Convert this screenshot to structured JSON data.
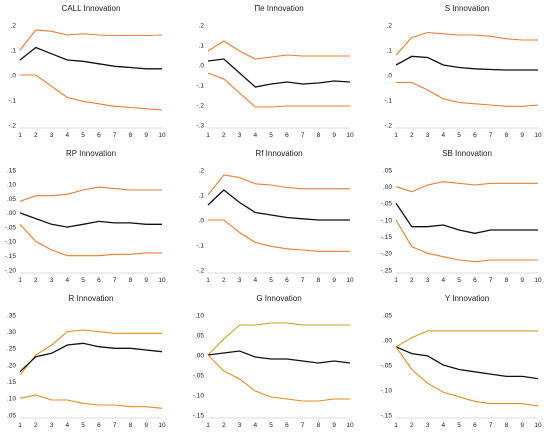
{
  "chart_data": [
    {
      "type": "line",
      "title": "CALL Innovation",
      "x": [
        1,
        2,
        3,
        4,
        5,
        6,
        7,
        8,
        9,
        10
      ],
      "yticks": [
        ".2",
        ".1",
        ".0",
        "-.1",
        "-.2"
      ],
      "ylim": [
        -0.2,
        0.2
      ],
      "series": [
        {
          "values": [
            0.1,
            0.18,
            0.175,
            0.16,
            0.165,
            0.16,
            0.158,
            0.158,
            0.158,
            0.16
          ],
          "color": "#ee7b30"
        },
        {
          "values": [
            0.06,
            0.11,
            0.085,
            0.06,
            0.055,
            0.045,
            0.035,
            0.03,
            0.025,
            0.025
          ],
          "color": "#111111"
        },
        {
          "values": [
            0.0,
            0.0,
            -0.045,
            -0.09,
            -0.105,
            -0.115,
            -0.125,
            -0.13,
            -0.135,
            -0.14
          ],
          "color": "#ee7b30"
        }
      ]
    },
    {
      "type": "line",
      "title": "Пe Innovation",
      "x": [
        1,
        2,
        3,
        4,
        5,
        6,
        7,
        8,
        9,
        10
      ],
      "yticks": [
        ".2",
        ".1",
        ".0",
        "-.1",
        "-.2",
        "-.3"
      ],
      "ylim": [
        -0.3,
        0.2
      ],
      "series": [
        {
          "values": [
            0.07,
            0.12,
            0.07,
            0.03,
            0.04,
            0.05,
            0.045,
            0.045,
            0.045,
            0.045
          ],
          "color": "#ee7b30"
        },
        {
          "values": [
            0.02,
            0.03,
            -0.04,
            -0.11,
            -0.095,
            -0.085,
            -0.095,
            -0.09,
            -0.08,
            -0.085
          ],
          "color": "#111111"
        },
        {
          "values": [
            -0.04,
            -0.07,
            -0.14,
            -0.21,
            -0.21,
            -0.205,
            -0.205,
            -0.205,
            -0.205,
            -0.205
          ],
          "color": "#ee7b30"
        }
      ]
    },
    {
      "type": "line",
      "title": "S Innovation",
      "x": [
        1,
        2,
        3,
        4,
        5,
        6,
        7,
        8,
        9,
        10
      ],
      "yticks": [
        ".2",
        ".1",
        ".0",
        "-.1",
        "-.2"
      ],
      "ylim": [
        -0.2,
        0.2
      ],
      "series": [
        {
          "values": [
            0.08,
            0.15,
            0.17,
            0.165,
            0.16,
            0.16,
            0.155,
            0.145,
            0.14,
            0.14
          ],
          "color": "#ee7b30"
        },
        {
          "values": [
            0.04,
            0.075,
            0.07,
            0.04,
            0.03,
            0.025,
            0.022,
            0.02,
            0.02,
            0.02
          ],
          "color": "#111111"
        },
        {
          "values": [
            -0.03,
            -0.03,
            -0.06,
            -0.095,
            -0.11,
            -0.115,
            -0.12,
            -0.125,
            -0.125,
            -0.12
          ],
          "color": "#ee7b30"
        }
      ]
    },
    {
      "type": "line",
      "title": "RP Innovation",
      "x": [
        1,
        2,
        3,
        4,
        5,
        6,
        7,
        8,
        9,
        10
      ],
      "yticks": [
        ".15",
        ".10",
        ".05",
        ".00",
        "-.05",
        "-.10",
        "-.15",
        "-.20"
      ],
      "ylim": [
        -0.2,
        0.15
      ],
      "series": [
        {
          "values": [
            0.04,
            0.06,
            0.06,
            0.065,
            0.08,
            0.09,
            0.085,
            0.08,
            0.08,
            0.08
          ],
          "color": "#ee7b30"
        },
        {
          "values": [
            0.0,
            -0.02,
            -0.04,
            -0.05,
            -0.04,
            -0.03,
            -0.035,
            -0.035,
            -0.04,
            -0.04
          ],
          "color": "#111111"
        },
        {
          "values": [
            -0.04,
            -0.1,
            -0.13,
            -0.15,
            -0.15,
            -0.15,
            -0.145,
            -0.145,
            -0.14,
            -0.14
          ],
          "color": "#ee7b30"
        }
      ]
    },
    {
      "type": "line",
      "title": "Rf Innovation",
      "x": [
        1,
        2,
        3,
        4,
        5,
        6,
        7,
        8,
        9,
        10
      ],
      "yticks": [
        ".2",
        ".1",
        ".0",
        "-.1",
        "-.2"
      ],
      "ylim": [
        -0.2,
        0.2
      ],
      "series": [
        {
          "values": [
            0.1,
            0.18,
            0.17,
            0.145,
            0.14,
            0.13,
            0.125,
            0.125,
            0.125,
            0.125
          ],
          "color": "#ee7b30"
        },
        {
          "values": [
            0.06,
            0.12,
            0.07,
            0.03,
            0.02,
            0.01,
            0.005,
            0.0,
            0.0,
            0.0
          ],
          "color": "#111111"
        },
        {
          "values": [
            0.0,
            0.0,
            -0.05,
            -0.09,
            -0.105,
            -0.115,
            -0.12,
            -0.125,
            -0.125,
            -0.125
          ],
          "color": "#ee7b30"
        }
      ]
    },
    {
      "type": "line",
      "title": "SB Innovation",
      "x": [
        1,
        2,
        3,
        4,
        5,
        6,
        7,
        8,
        9,
        10
      ],
      "yticks": [
        ".05",
        ".00",
        "-.05",
        "-.10",
        "-.15",
        "-.20",
        "-.25"
      ],
      "ylim": [
        -0.25,
        0.05
      ],
      "series": [
        {
          "values": [
            0.0,
            -0.015,
            0.005,
            0.015,
            0.01,
            0.005,
            0.01,
            0.01,
            0.01,
            0.01
          ],
          "color": "#ee7b30"
        },
        {
          "values": [
            -0.05,
            -0.12,
            -0.12,
            -0.115,
            -0.13,
            -0.14,
            -0.13,
            -0.13,
            -0.13,
            -0.13
          ],
          "color": "#111111"
        },
        {
          "values": [
            -0.1,
            -0.18,
            -0.2,
            -0.21,
            -0.22,
            -0.225,
            -0.22,
            -0.22,
            -0.22,
            -0.22
          ],
          "color": "#ee7b30"
        }
      ]
    },
    {
      "type": "line",
      "title": "R Innovation",
      "x": [
        1,
        2,
        3,
        4,
        5,
        6,
        7,
        8,
        9,
        10
      ],
      "yticks": [
        ".35",
        ".30",
        ".25",
        ".20",
        ".15",
        ".10",
        ".05"
      ],
      "ylim": [
        0.05,
        0.35
      ],
      "series": [
        {
          "values": [
            0.17,
            0.23,
            0.26,
            0.3,
            0.305,
            0.3,
            0.295,
            0.295,
            0.295,
            0.295
          ],
          "color": "#e09020"
        },
        {
          "values": [
            0.18,
            0.225,
            0.235,
            0.26,
            0.265,
            0.255,
            0.25,
            0.25,
            0.245,
            0.24
          ],
          "color": "#111111"
        },
        {
          "values": [
            0.1,
            0.11,
            0.095,
            0.095,
            0.085,
            0.08,
            0.08,
            0.075,
            0.075,
            0.07
          ],
          "color": "#e09020"
        }
      ]
    },
    {
      "type": "line",
      "title": "G Innovation",
      "x": [
        1,
        2,
        3,
        4,
        5,
        6,
        7,
        8,
        9,
        10
      ],
      "yticks": [
        ".10",
        ".05",
        ".00",
        "-.05",
        "-.10",
        "-.15"
      ],
      "ylim": [
        -0.15,
        0.1
      ],
      "series": [
        {
          "values": [
            0.0,
            0.04,
            0.075,
            0.075,
            0.08,
            0.08,
            0.075,
            0.075,
            0.075,
            0.075
          ],
          "color": "#c8a020"
        },
        {
          "values": [
            0.0,
            0.005,
            0.01,
            -0.005,
            -0.01,
            -0.01,
            -0.015,
            -0.02,
            -0.015,
            -0.02
          ],
          "color": "#111111"
        },
        {
          "values": [
            0.0,
            -0.04,
            -0.06,
            -0.09,
            -0.105,
            -0.11,
            -0.115,
            -0.115,
            -0.11,
            -0.11
          ],
          "color": "#e09020"
        }
      ]
    },
    {
      "type": "line",
      "title": "Y Innovation",
      "x": [
        1,
        2,
        3,
        4,
        5,
        6,
        7,
        8,
        9,
        10
      ],
      "yticks": [
        ".05",
        ".00",
        "-.05",
        "-.10",
        "-.15"
      ],
      "ylim": [
        -0.15,
        0.07
      ],
      "series": [
        {
          "values": [
            0.0,
            0.02,
            0.035,
            0.035,
            0.035,
            0.035,
            0.035,
            0.035,
            0.035,
            0.035
          ],
          "color": "#c8a020"
        },
        {
          "values": [
            0.0,
            -0.015,
            -0.02,
            -0.04,
            -0.05,
            -0.055,
            -0.06,
            -0.065,
            -0.065,
            -0.07
          ],
          "color": "#111111"
        },
        {
          "values": [
            0.0,
            -0.05,
            -0.08,
            -0.1,
            -0.11,
            -0.12,
            -0.125,
            -0.125,
            -0.125,
            -0.13
          ],
          "color": "#e09020"
        }
      ]
    }
  ]
}
